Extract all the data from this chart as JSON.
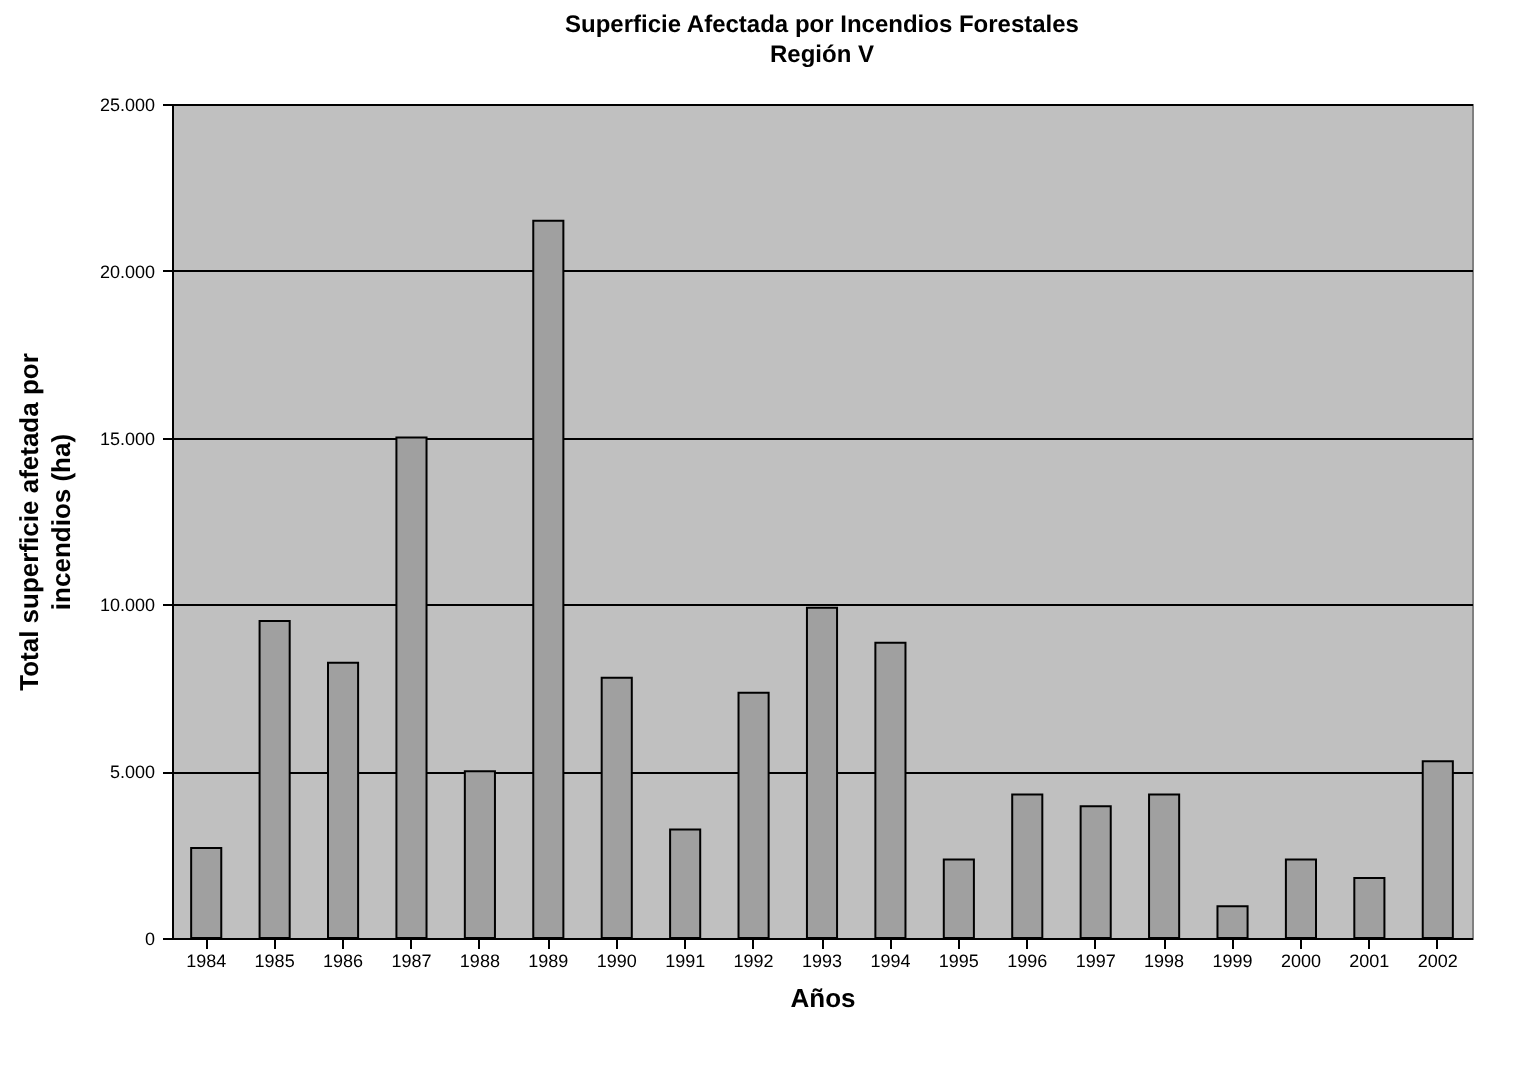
{
  "chart_data": {
    "type": "bar",
    "title": "Superficie Afectada por Incendios Forestales",
    "subtitle": "Región V",
    "xlabel": "Años",
    "ylabel": "Total superficie afetada por\nincendios (ha)",
    "categories": [
      "1984",
      "1985",
      "1986",
      "1987",
      "1988",
      "1989",
      "1990",
      "1991",
      "1992",
      "1993",
      "1994",
      "1995",
      "1996",
      "1997",
      "1998",
      "1999",
      "2000",
      "2001",
      "2002"
    ],
    "values": [
      2700,
      9500,
      8250,
      15000,
      5000,
      21500,
      7800,
      3250,
      7350,
      9900,
      8850,
      2350,
      4300,
      3950,
      4300,
      950,
      2350,
      1800,
      5300
    ],
    "color": "#a0a0a0",
    "ylim": [
      0,
      25000
    ],
    "yticks": [
      {
        "value": 0,
        "label": "0"
      },
      {
        "value": 5000,
        "label": "5.000"
      },
      {
        "value": 10000,
        "label": "10.000"
      },
      {
        "value": 15000,
        "label": "15.000"
      },
      {
        "value": 20000,
        "label": "20.000"
      },
      {
        "value": 25000,
        "label": "25.000"
      }
    ],
    "grid": "y"
  }
}
